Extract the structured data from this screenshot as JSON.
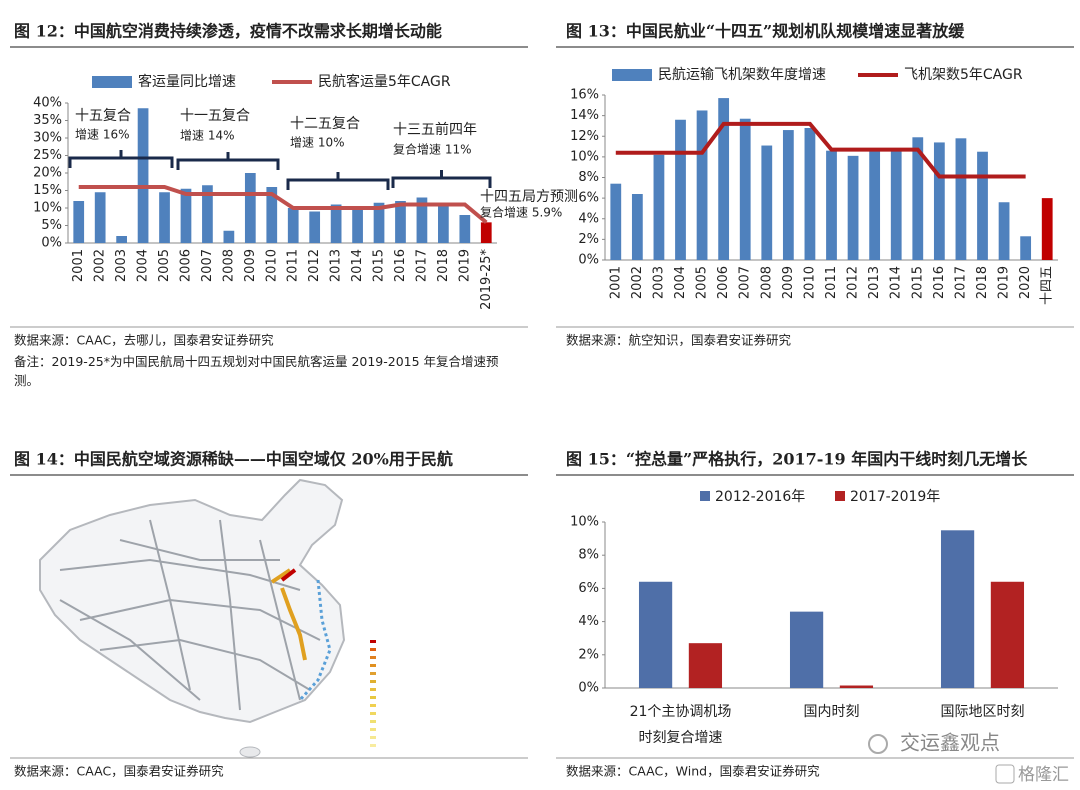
{
  "chart_data": [
    {
      "type": "bar",
      "title": "图 12：中国航空消费持续渗透，疫情不改需求长期增长动能",
      "categories": [
        "2001",
        "2002",
        "2003",
        "2004",
        "2005",
        "2006",
        "2007",
        "2008",
        "2009",
        "2010",
        "2011",
        "2012",
        "2013",
        "2014",
        "2015",
        "2016",
        "2017",
        "2018",
        "2019",
        "2019-25*"
      ],
      "series": [
        {
          "name": "客运量同比增速",
          "type": "bar",
          "color": "#4f81bd",
          "values": [
            12,
            14.5,
            2,
            38.5,
            14.5,
            15.5,
            16.5,
            3.5,
            20,
            16,
            10,
            9,
            11,
            10.5,
            11.5,
            12,
            13,
            11,
            8,
            null
          ]
        },
        {
          "type": "bar",
          "color": "#c00000",
          "values": [
            null,
            null,
            null,
            null,
            null,
            null,
            null,
            null,
            null,
            null,
            null,
            null,
            null,
            null,
            null,
            null,
            null,
            null,
            null,
            5.9
          ]
        },
        {
          "name": "民航客运量5年CAGR",
          "type": "line",
          "color": "#c0504d",
          "values": [
            16,
            16,
            16,
            16,
            16,
            14,
            14,
            14,
            14,
            14,
            10,
            10,
            10,
            10,
            10,
            11,
            11,
            11,
            11,
            5.9
          ]
        }
      ],
      "ylim": [
        0,
        40
      ],
      "yticks": [
        {
          "value": 0,
          "label": "0%"
        },
        {
          "value": 5,
          "label": "5%"
        },
        {
          "value": 10,
          "label": "10%"
        },
        {
          "value": 15,
          "label": "15%"
        },
        {
          "value": 20,
          "label": "20%"
        },
        {
          "value": 25,
          "label": "25%"
        },
        {
          "value": 30,
          "label": "30%"
        },
        {
          "value": 35,
          "label": "35%"
        },
        {
          "value": 40,
          "label": "40%"
        }
      ],
      "annotations": [
        "十五复合",
        "增速 16%",
        "十一五复合",
        "增速 14%",
        "十二五复合",
        "增速 10%",
        "十三五前四年",
        "复合增速 11%",
        "十四五局方预测",
        "复合增速 5.9%"
      ],
      "source": "数据来源：CAAC，去哪儿，国泰君安证券研究",
      "note": "备注：2019-25*为中国民航局十四五规划对中国民航客运量 2019-2015 年复合增速预测。"
    },
    {
      "type": "bar",
      "title": "图 13：中国民航业“十四五”规划机队规模增速显著放缓",
      "categories": [
        "2001",
        "2002",
        "2003",
        "2004",
        "2005",
        "2006",
        "2007",
        "2008",
        "2009",
        "2010",
        "2011",
        "2012",
        "2013",
        "2014",
        "2015",
        "2016",
        "2017",
        "2018",
        "2019",
        "2020",
        "十四五"
      ],
      "series": [
        {
          "name": "民航运输飞机架数年度增速",
          "type": "bar",
          "color": "#4f81bd",
          "values": [
            7.4,
            6.4,
            10.2,
            13.6,
            14.5,
            15.7,
            13.7,
            11.1,
            12.6,
            12.8,
            10.6,
            10.1,
            10.6,
            10.6,
            11.9,
            11.4,
            11.8,
            10.5,
            5.6,
            2.3,
            null
          ]
        },
        {
          "type": "bar",
          "color": "#c00000",
          "values": [
            null,
            null,
            null,
            null,
            null,
            null,
            null,
            null,
            null,
            null,
            null,
            null,
            null,
            null,
            null,
            null,
            null,
            null,
            null,
            null,
            6
          ]
        },
        {
          "name": "飞机架数5年CAGR",
          "type": "line",
          "color": "#b01c1c",
          "values": [
            10.4,
            10.4,
            10.4,
            10.4,
            10.4,
            13.2,
            13.2,
            13.2,
            13.2,
            13.2,
            10.7,
            10.7,
            10.7,
            10.7,
            10.7,
            8.1,
            8.1,
            8.1,
            8.1,
            8.1,
            null
          ]
        }
      ],
      "ylim": [
        0,
        16
      ],
      "yticks": [
        {
          "value": 0,
          "label": "0%"
        },
        {
          "value": 2,
          "label": "2%"
        },
        {
          "value": 4,
          "label": "4%"
        },
        {
          "value": 6,
          "label": "6%"
        },
        {
          "value": 8,
          "label": "8%"
        },
        {
          "value": 10,
          "label": "10%"
        },
        {
          "value": 12,
          "label": "12%"
        },
        {
          "value": 14,
          "label": "14%"
        },
        {
          "value": 16,
          "label": "16%"
        }
      ],
      "source": "数据来源：航空知识，国泰君安证券研究"
    },
    {
      "type": "bar",
      "title": "图 15：“控总量”严格执行，2017-19 年国内干线时刻几无增长",
      "categories": [
        "21个主协调机场\n时刻复合增速",
        "国内时刻",
        "国际地区时刻"
      ],
      "series": [
        {
          "name": "2012-2016年",
          "type": "bar",
          "color": "#4f6fa8",
          "values": [
            6.4,
            4.6,
            9.5
          ]
        },
        {
          "name": "2017-2019年",
          "type": "bar",
          "color": "#b22222",
          "values": [
            2.7,
            0.15,
            6.4
          ]
        }
      ],
      "ylim": [
        0,
        10
      ],
      "yticks": [
        {
          "value": 0,
          "label": "0%"
        },
        {
          "value": 2,
          "label": "2%"
        },
        {
          "value": 4,
          "label": "4%"
        },
        {
          "value": 6,
          "label": "6%"
        },
        {
          "value": 8,
          "label": "8%"
        },
        {
          "value": 10,
          "label": "10%"
        }
      ],
      "source": "数据来源：CAAC，Wind，国泰君安证券研究"
    }
  ],
  "map": {
    "title": "图 14：中国民航空域资源稀缺——中国空域仅 20%用于民航",
    "source": "数据来源：CAAC，国泰君安证券研究"
  },
  "watermark": {
    "account": "交运鑫观点",
    "brand": "格隆汇"
  }
}
